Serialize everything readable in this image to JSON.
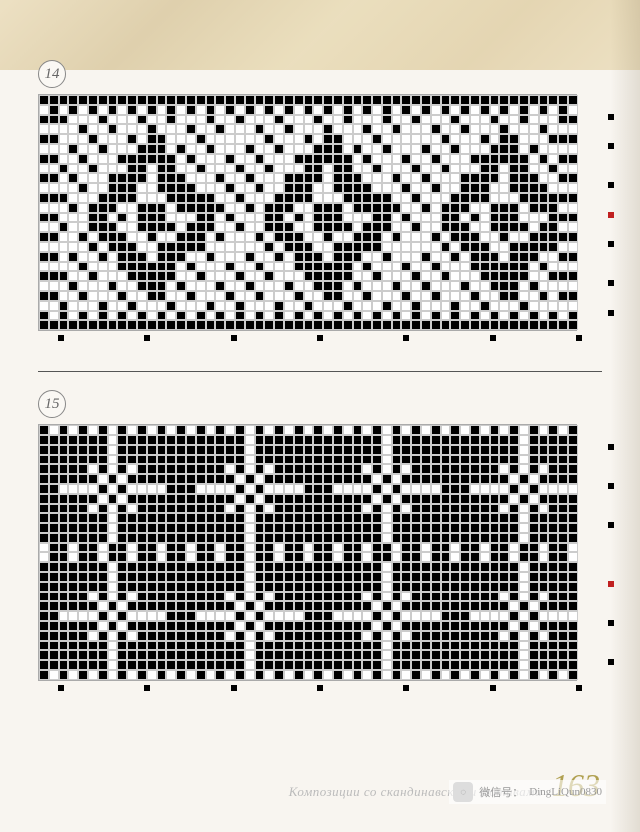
{
  "page_number": "163",
  "footer_text": "Композиции со скандинавскими мотивами",
  "wechat_label": "微信号：",
  "wechat_id": "DingLiQun0830",
  "charts": [
    {
      "number": "14",
      "cols": 55,
      "rows": 24,
      "cell_size": 9.8,
      "pattern_type": "heart_flower",
      "colors": {
        "filled": "#000000",
        "empty": "#ffffff",
        "grid": "#cccccc"
      },
      "h_markers": 7,
      "v_markers": [
        {
          "row": 2,
          "color": "#000"
        },
        {
          "row": 5,
          "color": "#000"
        },
        {
          "row": 9,
          "color": "#000"
        },
        {
          "row": 12,
          "color": "#c02020"
        },
        {
          "row": 15,
          "color": "#000"
        },
        {
          "row": 19,
          "color": "#000"
        },
        {
          "row": 22,
          "color": "#000"
        }
      ]
    },
    {
      "number": "15",
      "cols": 55,
      "rows": 26,
      "cell_size": 9.8,
      "pattern_type": "dense_snowflake",
      "colors": {
        "filled": "#000000",
        "empty": "#ffffff",
        "grid": "#cccccc"
      },
      "h_markers": 7,
      "v_markers": [
        {
          "row": 2,
          "color": "#000"
        },
        {
          "row": 6,
          "color": "#000"
        },
        {
          "row": 10,
          "color": "#000"
        },
        {
          "row": 16,
          "color": "#c02020"
        },
        {
          "row": 20,
          "color": "#000"
        },
        {
          "row": 24,
          "color": "#000"
        }
      ]
    }
  ]
}
